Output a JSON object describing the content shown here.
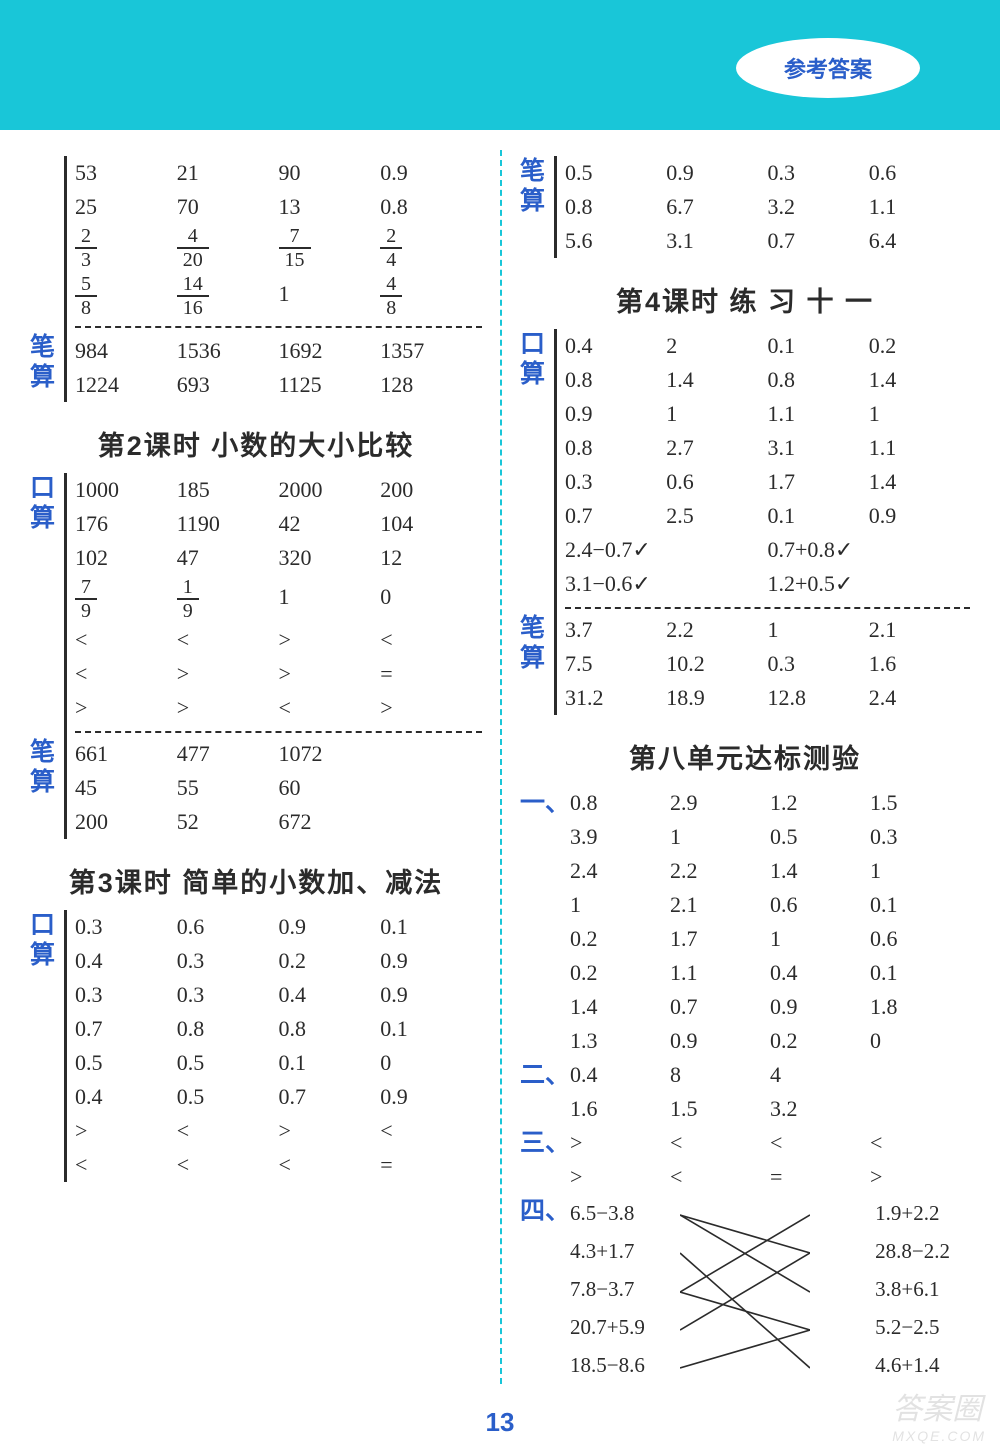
{
  "header": {
    "badge": "参考答案"
  },
  "pageNumber": "13",
  "watermark": {
    "main": "答案圈",
    "sub": "MXQE.COM"
  },
  "left": {
    "top_block": {
      "label": "笔算",
      "upper_rows": [
        [
          "53",
          "21",
          "90",
          "0.9"
        ],
        [
          "25",
          "70",
          "13",
          "0.8"
        ]
      ],
      "frac_rows": [
        [
          [
            "2",
            "3"
          ],
          [
            "4",
            "20"
          ],
          [
            "7",
            "15"
          ],
          [
            "2",
            "4"
          ]
        ],
        [
          [
            "5",
            "8"
          ],
          [
            "14",
            "16"
          ],
          [
            "1"
          ],
          [
            "4",
            "8"
          ]
        ]
      ],
      "lower_rows": [
        [
          "984",
          "1536",
          "1692",
          "1357"
        ],
        [
          "1224",
          "693",
          "1125",
          "128"
        ]
      ]
    },
    "sec2": {
      "title": "第2课时  小数的大小比较",
      "kou_label": "口算",
      "kou_rows": [
        [
          "1000",
          "185",
          "2000",
          "200"
        ],
        [
          "176",
          "1190",
          "42",
          "104"
        ],
        [
          "102",
          "47",
          "320",
          "12"
        ]
      ],
      "kou_frac": [
        [
          [
            "7",
            "9"
          ],
          [
            "1",
            "9"
          ],
          [
            "1"
          ],
          [
            "0"
          ]
        ]
      ],
      "kou_sym": [
        [
          "<",
          "<",
          ">",
          "<"
        ],
        [
          "<",
          ">",
          ">",
          "="
        ],
        [
          ">",
          ">",
          "<",
          ">"
        ]
      ],
      "bi_label": "笔算",
      "bi_rows": [
        [
          "661",
          "477",
          "1072",
          ""
        ],
        [
          "45",
          "55",
          "60",
          ""
        ],
        [
          "200",
          "52",
          "672",
          ""
        ]
      ]
    },
    "sec3": {
      "title": "第3课时  简单的小数加、减法",
      "kou_label": "口算",
      "kou_rows": [
        [
          "0.3",
          "0.6",
          "0.9",
          "0.1"
        ],
        [
          "0.4",
          "0.3",
          "0.2",
          "0.9"
        ],
        [
          "0.3",
          "0.3",
          "0.4",
          "0.9"
        ],
        [
          "0.7",
          "0.8",
          "0.8",
          "0.1"
        ],
        [
          "0.5",
          "0.5",
          "0.1",
          "0"
        ],
        [
          "0.4",
          "0.5",
          "0.7",
          "0.9"
        ]
      ],
      "kou_sym": [
        [
          ">",
          "<",
          ">",
          "<"
        ],
        [
          "<",
          "<",
          "<",
          "="
        ]
      ]
    }
  },
  "right": {
    "top_bi": {
      "label": "笔算",
      "rows": [
        [
          "0.5",
          "0.9",
          "0.3",
          "0.6"
        ],
        [
          "0.8",
          "6.7",
          "3.2",
          "1.1"
        ],
        [
          "5.6",
          "3.1",
          "0.7",
          "6.4"
        ]
      ]
    },
    "sec4": {
      "title": "第4课时  练 习 十 一",
      "kou_label": "口算",
      "kou_rows": [
        [
          "0.4",
          "2",
          "0.1",
          "0.2"
        ],
        [
          "0.8",
          "1.4",
          "0.8",
          "1.4"
        ],
        [
          "0.9",
          "1",
          "1.1",
          "1"
        ],
        [
          "0.8",
          "2.7",
          "3.1",
          "1.1"
        ],
        [
          "0.3",
          "0.6",
          "1.7",
          "1.4"
        ],
        [
          "0.7",
          "2.5",
          "0.1",
          "0.9"
        ]
      ],
      "kou_expr": [
        [
          "2.4−0.7",
          "0.7+0.8"
        ],
        [
          "3.1−0.6",
          "1.2+0.5"
        ]
      ],
      "bi_label": "笔算",
      "bi_rows": [
        [
          "3.7",
          "2.2",
          "1",
          "2.1"
        ],
        [
          "7.5",
          "10.2",
          "0.3",
          "1.6"
        ],
        [
          "31.2",
          "18.9",
          "12.8",
          "2.4"
        ]
      ]
    },
    "unit8": {
      "title": "第八单元达标测验",
      "q1": {
        "label": "一、",
        "rows": [
          [
            "0.8",
            "2.9",
            "1.2",
            "1.5"
          ],
          [
            "3.9",
            "1",
            "0.5",
            "0.3"
          ],
          [
            "2.4",
            "2.2",
            "1.4",
            "1"
          ],
          [
            "1",
            "2.1",
            "0.6",
            "0.1"
          ],
          [
            "0.2",
            "1.7",
            "1",
            "0.6"
          ],
          [
            "0.2",
            "1.1",
            "0.4",
            "0.1"
          ],
          [
            "1.4",
            "0.7",
            "0.9",
            "1.8"
          ],
          [
            "1.3",
            "0.9",
            "0.2",
            "0"
          ]
        ]
      },
      "q2": {
        "label": "二、",
        "rows": [
          [
            "0.4",
            "8",
            "4",
            ""
          ],
          [
            "1.6",
            "1.5",
            "3.2",
            ""
          ]
        ]
      },
      "q3": {
        "label": "三、",
        "rows": [
          [
            ">",
            "<",
            "<",
            "<"
          ],
          [
            ">",
            "<",
            "=",
            ">"
          ]
        ]
      },
      "q4": {
        "label": "四、",
        "left": [
          "6.5−3.8",
          "4.3+1.7",
          "7.8−3.7",
          "20.7+5.9",
          "18.5−8.6"
        ],
        "right": [
          "1.9+2.2",
          "28.8−2.2",
          "3.8+6.1",
          "5.2−2.5",
          "4.6+1.4"
        ]
      }
    }
  }
}
